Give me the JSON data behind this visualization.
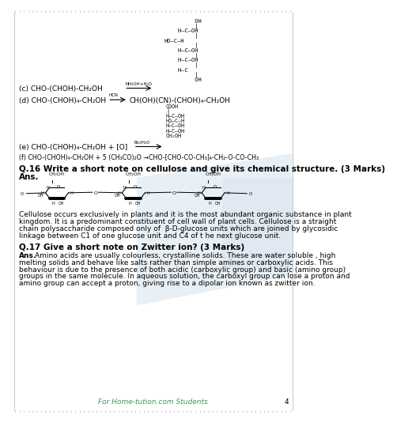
{
  "bg_color": "#ffffff",
  "border_color": "#cccccc",
  "text_color": "#000000",
  "green_color": "#3a9a5c",
  "blue_bg": "#c8d8e8",
  "title_fontsize": 7.5,
  "body_fontsize": 6.5,
  "footer_text": "For Home-tution.com Students",
  "page_number": "4",
  "q16_bold": "Q.16 Write a short note on cellulose and give its chemical structure. (3 Marks)",
  "q16_ans_label": "Ans.",
  "cellulose_text": "Cellulose occurs exclusively in plants and it is the most abundant organic substance in plant\nkingdom. It is a predominant constituent of cell wall of plant cells. Cellulose is a straight\nchain polysaccharide composed only of  β-D-glucose units which are joined by glycosidic\nlinkage between C1 of one glucose unit and C4 of t he next glucose unit.",
  "q17_bold": "Q.17 Give a short note on Zwitter ion? (3 Marks)",
  "q17_ans": "Ans. Amino acids are usually colourless, crystalline solids. These are water soluble , high\nmelting solids and behave like salts rather than simple amines or carboxylic acids. This\nbehaviour is due to the presence of both acidic (carboxylic group) and basic (amino group)\ngroups in the same molecule. In aqueous solution, the carboxyl group can lose a proton and\namino group can accept a proton, giving rise to a dipolar ion known as zwitter ion."
}
